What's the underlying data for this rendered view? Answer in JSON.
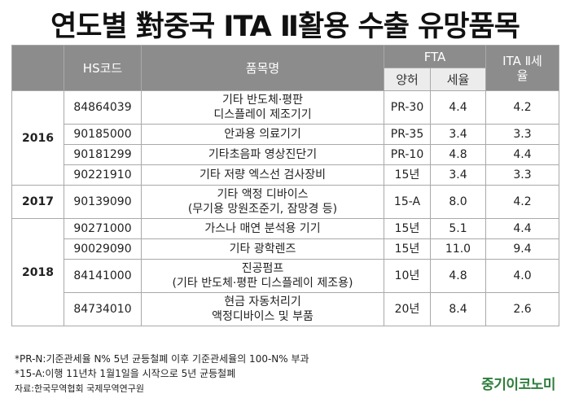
{
  "title": "연도별 對중국 ITA Ⅱ활용 수출 유망품목",
  "header": {
    "hs": "HS코드",
    "item": "품목명",
    "fta": "FTA",
    "fta_mode": "양허",
    "fta_rate": "세율",
    "ita_line1": "ITA Ⅱ세",
    "ita_line2": "율"
  },
  "years": [
    "2016",
    "2017",
    "2018"
  ],
  "rows": [
    {
      "hs": "84864039",
      "name1": "기타 반도체·평판",
      "name2": "디스플레이 제조기기",
      "mode": "PR-30",
      "rate": "4.4",
      "ita": "4.2"
    },
    {
      "hs": "90185000",
      "name1": "안과용 의료기기",
      "mode": "PR-35",
      "rate": "3.4",
      "ita": "3.3"
    },
    {
      "hs": "90181299",
      "name1": "기타초음파 영상진단기",
      "mode": "PR-10",
      "rate": "4.8",
      "ita": "4.4"
    },
    {
      "hs": "90221910",
      "name1": "기타 저량 엑스선 검사장비",
      "mode": "15년",
      "rate": "3.4",
      "ita": "3.3"
    },
    {
      "hs": "90139090",
      "name1": "기타 액정 디바이스",
      "name2": "(무기용 망원조준기, 잠망경 등)",
      "mode": "15-A",
      "rate": "8.0",
      "ita": "4.2"
    },
    {
      "hs": "90271000",
      "name1": "가스나 매연 분석용 기기",
      "mode": "15년",
      "rate": "5.1",
      "ita": "4.4"
    },
    {
      "hs": "90029090",
      "name1": "기타 광학렌즈",
      "mode": "15년",
      "rate": "11.0",
      "ita": "9.4"
    },
    {
      "hs": "84141000",
      "name1": "진공펌프",
      "name2": "(기타 반도체·평판 디스플레이 제조용)",
      "mode": "10년",
      "rate": "4.8",
      "ita": "4.0"
    },
    {
      "hs": "84734010",
      "name1": "현금 자동처리기",
      "name2": "액정디바이스 및 부품",
      "mode": "20년",
      "rate": "8.4",
      "ita": "2.6"
    }
  ],
  "notes": {
    "note1": "*PR-N:기준관세율 N% 5년 균등철폐 이후 기준관세율의 100-N% 부과",
    "note2": "*15-A:이행 11년차 1월1일을 시작으로 5년 균등철폐",
    "source": "자료:한국무역협회 국제무역연구원"
  },
  "logo": "중기이코노미"
}
